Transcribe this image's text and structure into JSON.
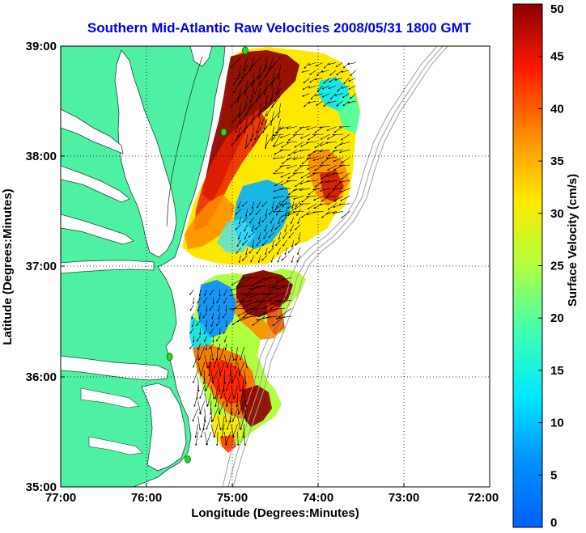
{
  "title": "Southern Mid-Atlantic Raw Velocities 2008/05/31 1800 GMT",
  "map": {
    "x_axis": {
      "label": "Longitude (Degrees:Minutes)",
      "ticks": [
        "77:00",
        "76:00",
        "75:00",
        "74:00",
        "73:00",
        "72:00"
      ],
      "values": [
        -77,
        -76,
        -75,
        -74,
        -73,
        -72
      ],
      "range": [
        -77,
        -72
      ]
    },
    "y_axis": {
      "label": "Latitude (Degrees:Minutes)",
      "ticks": [
        "35:00",
        "36:00",
        "37:00",
        "38:00",
        "39:00"
      ],
      "values": [
        35,
        36,
        37,
        38,
        39
      ],
      "range": [
        35,
        39
      ]
    },
    "grid": "dotted",
    "land_color": "#4ef0a4",
    "water_color": "#ffffff",
    "bathymetry_color": "#a0a0a0",
    "station_marker_color": "#22dd22",
    "stations": [
      {
        "lon": -74.85,
        "lat": 38.96
      },
      {
        "lon": -75.1,
        "lat": 38.22
      },
      {
        "lon": -75.73,
        "lat": 36.18
      },
      {
        "lon": -75.52,
        "lat": 35.25
      }
    ]
  },
  "colorbar": {
    "label": "Surface Velocity (cm/s)",
    "ticks": [
      "0",
      "5",
      "10",
      "15",
      "20",
      "25",
      "30",
      "35",
      "40",
      "45",
      "50"
    ],
    "values": [
      0,
      5,
      10,
      15,
      20,
      25,
      30,
      35,
      40,
      45,
      50
    ],
    "colormap": "jet",
    "range": [
      0,
      50
    ]
  },
  "velocity_field": {
    "units": "cm/s",
    "vector_color": "#000000",
    "regions": [
      {
        "lat_range": [
          38.2,
          38.95
        ],
        "lon_range": [
          -74.9,
          -74.4
        ],
        "speed": 44,
        "direction_deg": 205
      },
      {
        "lat_range": [
          38.5,
          38.85
        ],
        "lon_range": [
          -74.1,
          -73.55
        ],
        "speed": 14,
        "direction_deg": 240
      },
      {
        "lat_range": [
          37.5,
          38.3
        ],
        "lon_range": [
          -74.4,
          -73.6
        ],
        "speed": 26,
        "direction_deg": 250
      },
      {
        "lat_range": [
          37.1,
          37.6
        ],
        "lon_range": [
          -74.9,
          -74.2
        ],
        "speed": 12,
        "direction_deg": 210
      },
      {
        "lat_range": [
          36.55,
          36.95
        ],
        "lon_range": [
          -74.85,
          -74.3
        ],
        "speed": 48,
        "direction_deg": 250
      },
      {
        "lat_range": [
          36.3,
          36.8
        ],
        "lon_range": [
          -75.45,
          -75.0
        ],
        "speed": 8,
        "direction_deg": 200
      },
      {
        "lat_range": [
          35.5,
          36.3
        ],
        "lon_range": [
          -75.4,
          -74.85
        ],
        "speed": 40,
        "direction_deg": 185
      }
    ]
  }
}
